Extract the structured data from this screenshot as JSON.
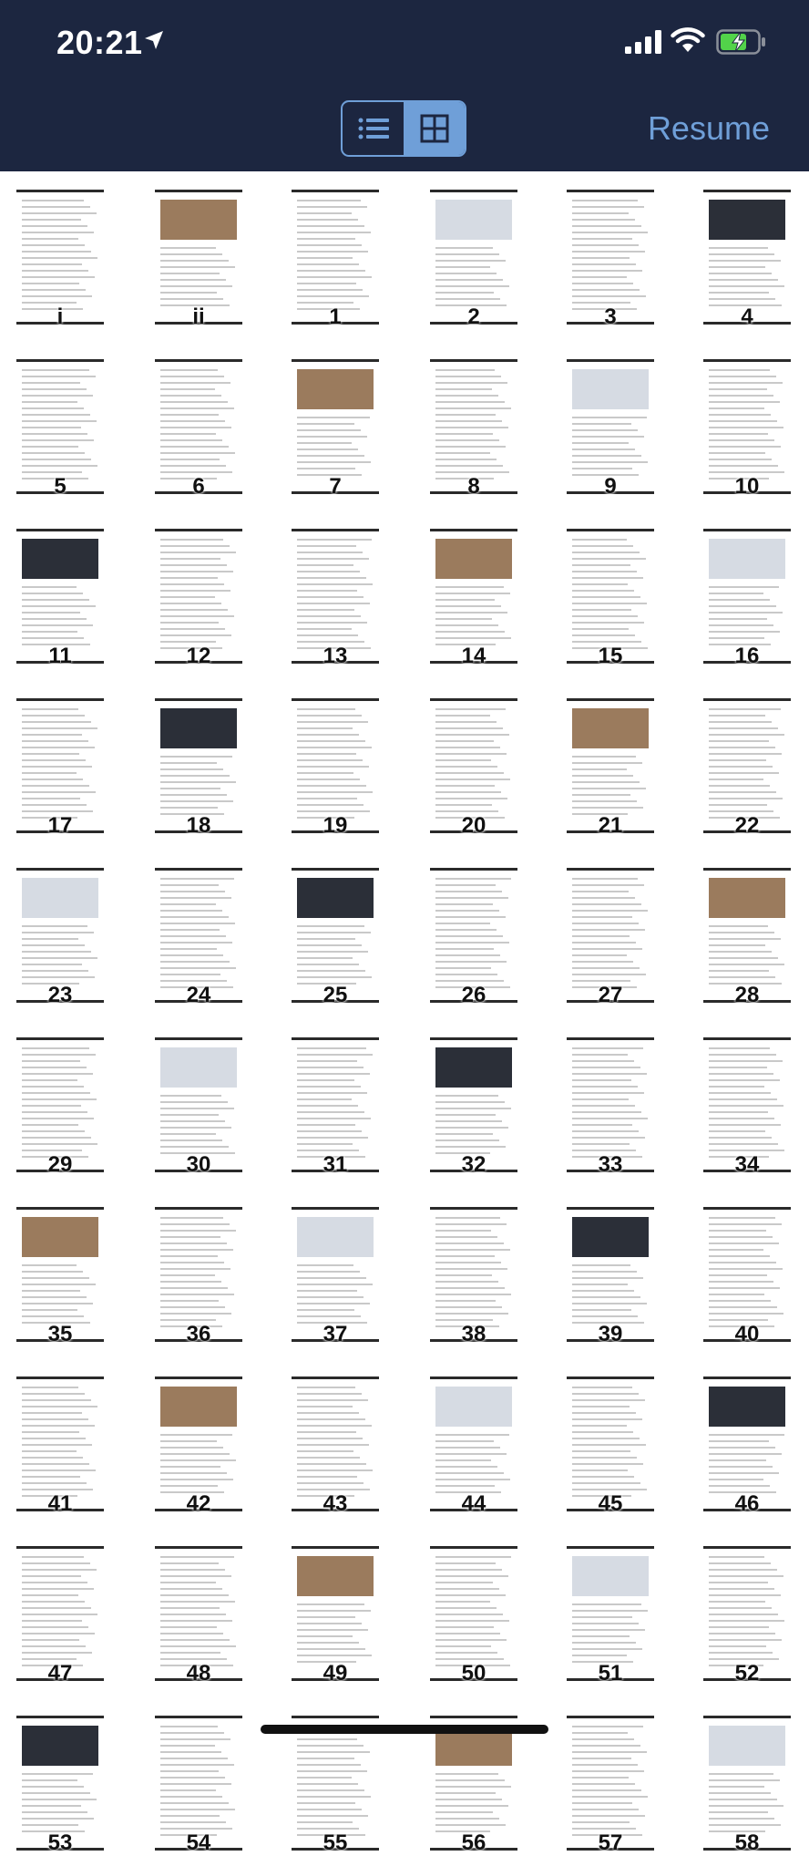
{
  "status_bar": {
    "time": "20:21"
  },
  "toolbar": {
    "view_toggle": {
      "list_icon": "list-icon",
      "grid_icon": "grid-icon",
      "selected": "grid"
    },
    "resume_label": "Resume"
  },
  "pages": [
    "i",
    "ii",
    "1",
    "2",
    "3",
    "4",
    "5",
    "6",
    "7",
    "8",
    "9",
    "10",
    "11",
    "12",
    "13",
    "14",
    "15",
    "16",
    "17",
    "18",
    "19",
    "20",
    "21",
    "22",
    "23",
    "24",
    "25",
    "26",
    "27",
    "28",
    "29",
    "30",
    "31",
    "32",
    "33",
    "34",
    "35",
    "36",
    "37",
    "38",
    "39",
    "40",
    "41",
    "42",
    "43",
    "44",
    "45",
    "46",
    "47",
    "48",
    "49",
    "50",
    "51",
    "52",
    "53",
    "54",
    "55",
    "56",
    "57",
    "58"
  ],
  "colors": {
    "topbar": "#1c2640",
    "accent": "#6f9fd8"
  }
}
